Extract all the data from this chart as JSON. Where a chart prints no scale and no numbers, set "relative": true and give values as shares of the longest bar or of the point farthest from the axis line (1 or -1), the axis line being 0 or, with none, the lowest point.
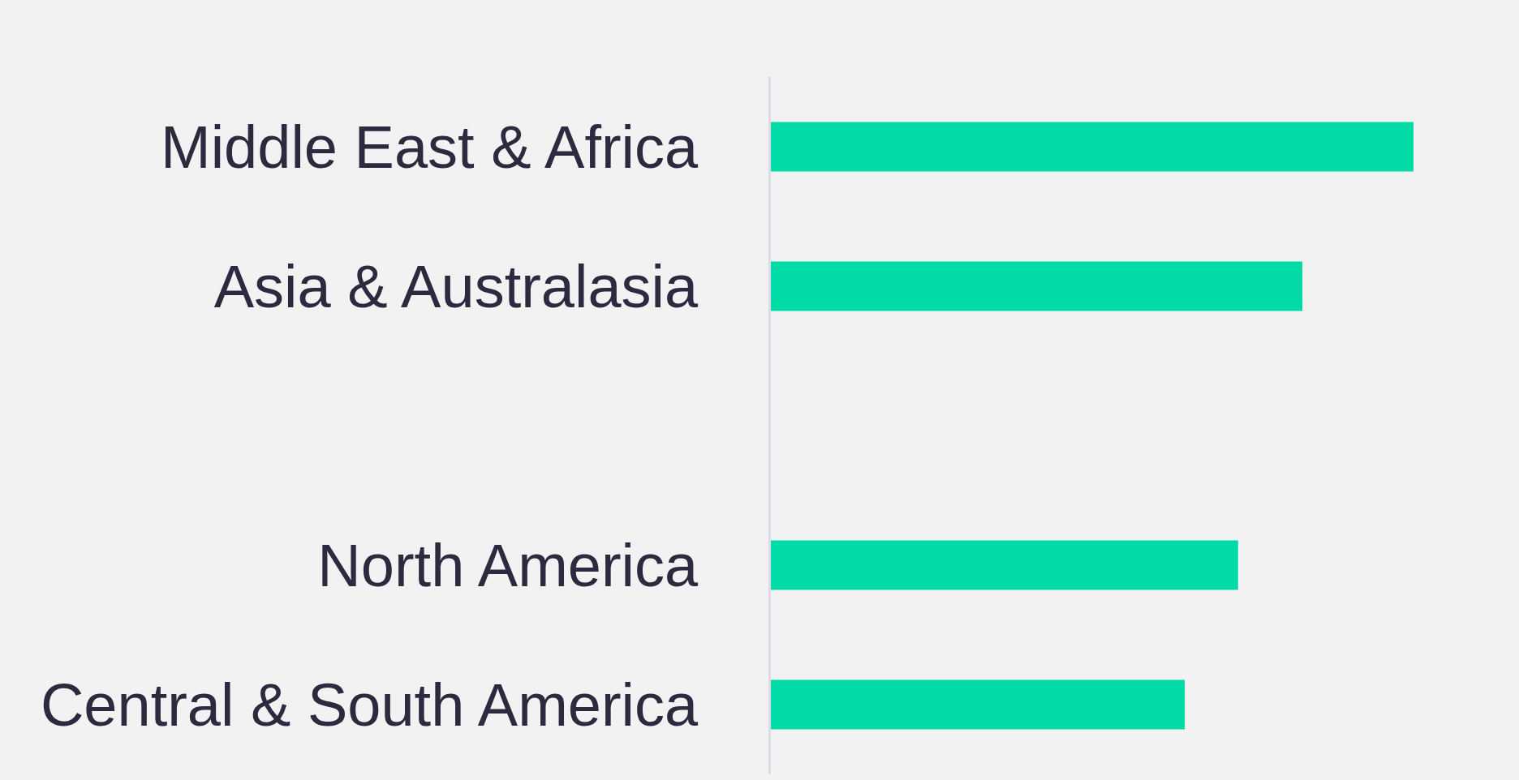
{
  "chart_data": {
    "type": "bar",
    "orientation": "horizontal",
    "relative": true,
    "categories": [
      "Middle East & Africa",
      "Asia & Australasia",
      null,
      "North America",
      "Central & South America"
    ],
    "values": [
      1,
      0.827,
      null,
      0.727,
      0.644
    ],
    "color": "#00dba6"
  }
}
